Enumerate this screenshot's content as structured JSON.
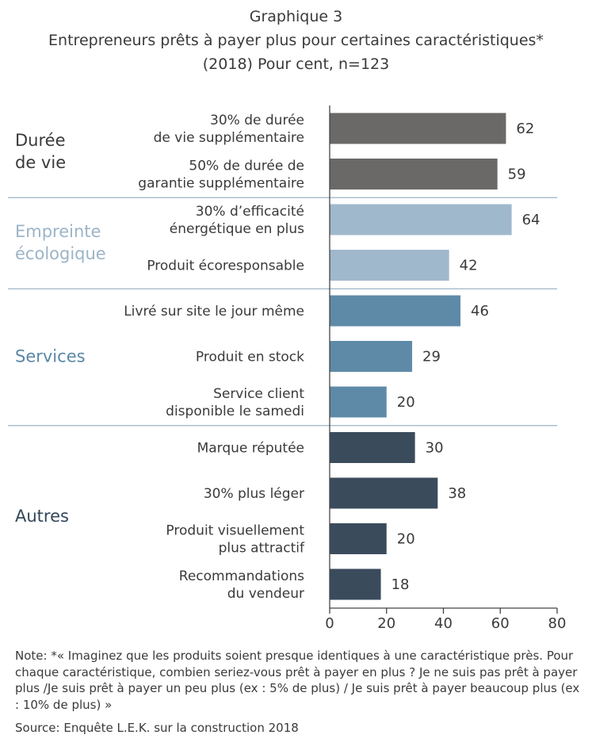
{
  "title": {
    "line1": "Graphique 3",
    "line2": "Entrepreneurs prêts à payer plus pour certaines caractéristiques*",
    "line3": "(2018)  Pour cent, n=123"
  },
  "chart_data": {
    "type": "bar",
    "orientation": "horizontal",
    "xlim": [
      0,
      80
    ],
    "xticks": [
      "0",
      "20",
      "40",
      "60",
      "80"
    ],
    "grid": false,
    "groups": [
      {
        "name": [
          "Durée",
          "de vie"
        ],
        "color": "#6b6967",
        "label_color": "#3a3a3a",
        "items": [
          {
            "label": [
              "30% de durée",
              "de vie supplémentaire"
            ],
            "value": 62
          },
          {
            "label": [
              "50% de durée de",
              "garantie supplémentaire"
            ],
            "value": 59
          }
        ]
      },
      {
        "name": [
          "Empreinte",
          "écologique"
        ],
        "color": "#a0b8cc",
        "label_color": "#9bb4c8",
        "items": [
          {
            "label": [
              "30% d’efficacité",
              "énergétique en plus"
            ],
            "value": 64
          },
          {
            "label": [
              "Produit écoresponsable"
            ],
            "value": 42
          }
        ]
      },
      {
        "name": [
          "Services"
        ],
        "color": "#5e8aa8",
        "label_color": "#5b87a6",
        "items": [
          {
            "label": [
              "Livré sur site le jour même"
            ],
            "value": 46
          },
          {
            "label": [
              "Produit en stock"
            ],
            "value": 29
          },
          {
            "label": [
              "Service client",
              "disponible le samedi"
            ],
            "value": 20
          }
        ]
      },
      {
        "name": [
          "Autres"
        ],
        "color": "#3a4b5c",
        "label_color": "#33465a",
        "items": [
          {
            "label": [
              "Marque réputée"
            ],
            "value": 30
          },
          {
            "label": [
              "30% plus léger"
            ],
            "value": 38
          },
          {
            "label": [
              "Produit visuellement",
              "plus attractif"
            ],
            "value": 20
          },
          {
            "label": [
              "Recommandations",
              "du vendeur"
            ],
            "value": 18
          }
        ]
      }
    ]
  },
  "note": "Note: *« Imaginez que les produits soient presque identiques à une  caractéristique près. Pour chaque caractéristique, combien seriez-vous prêt à payer en plus ? Je ne suis pas prêt à payer plus /Je suis prêt à payer un peu plus (ex :  5% de plus) / Je suis prêt à payer beaucoup plus (ex : 10% de plus) »",
  "source": "Source:  Enquête L.E.K. sur la construction 2018"
}
